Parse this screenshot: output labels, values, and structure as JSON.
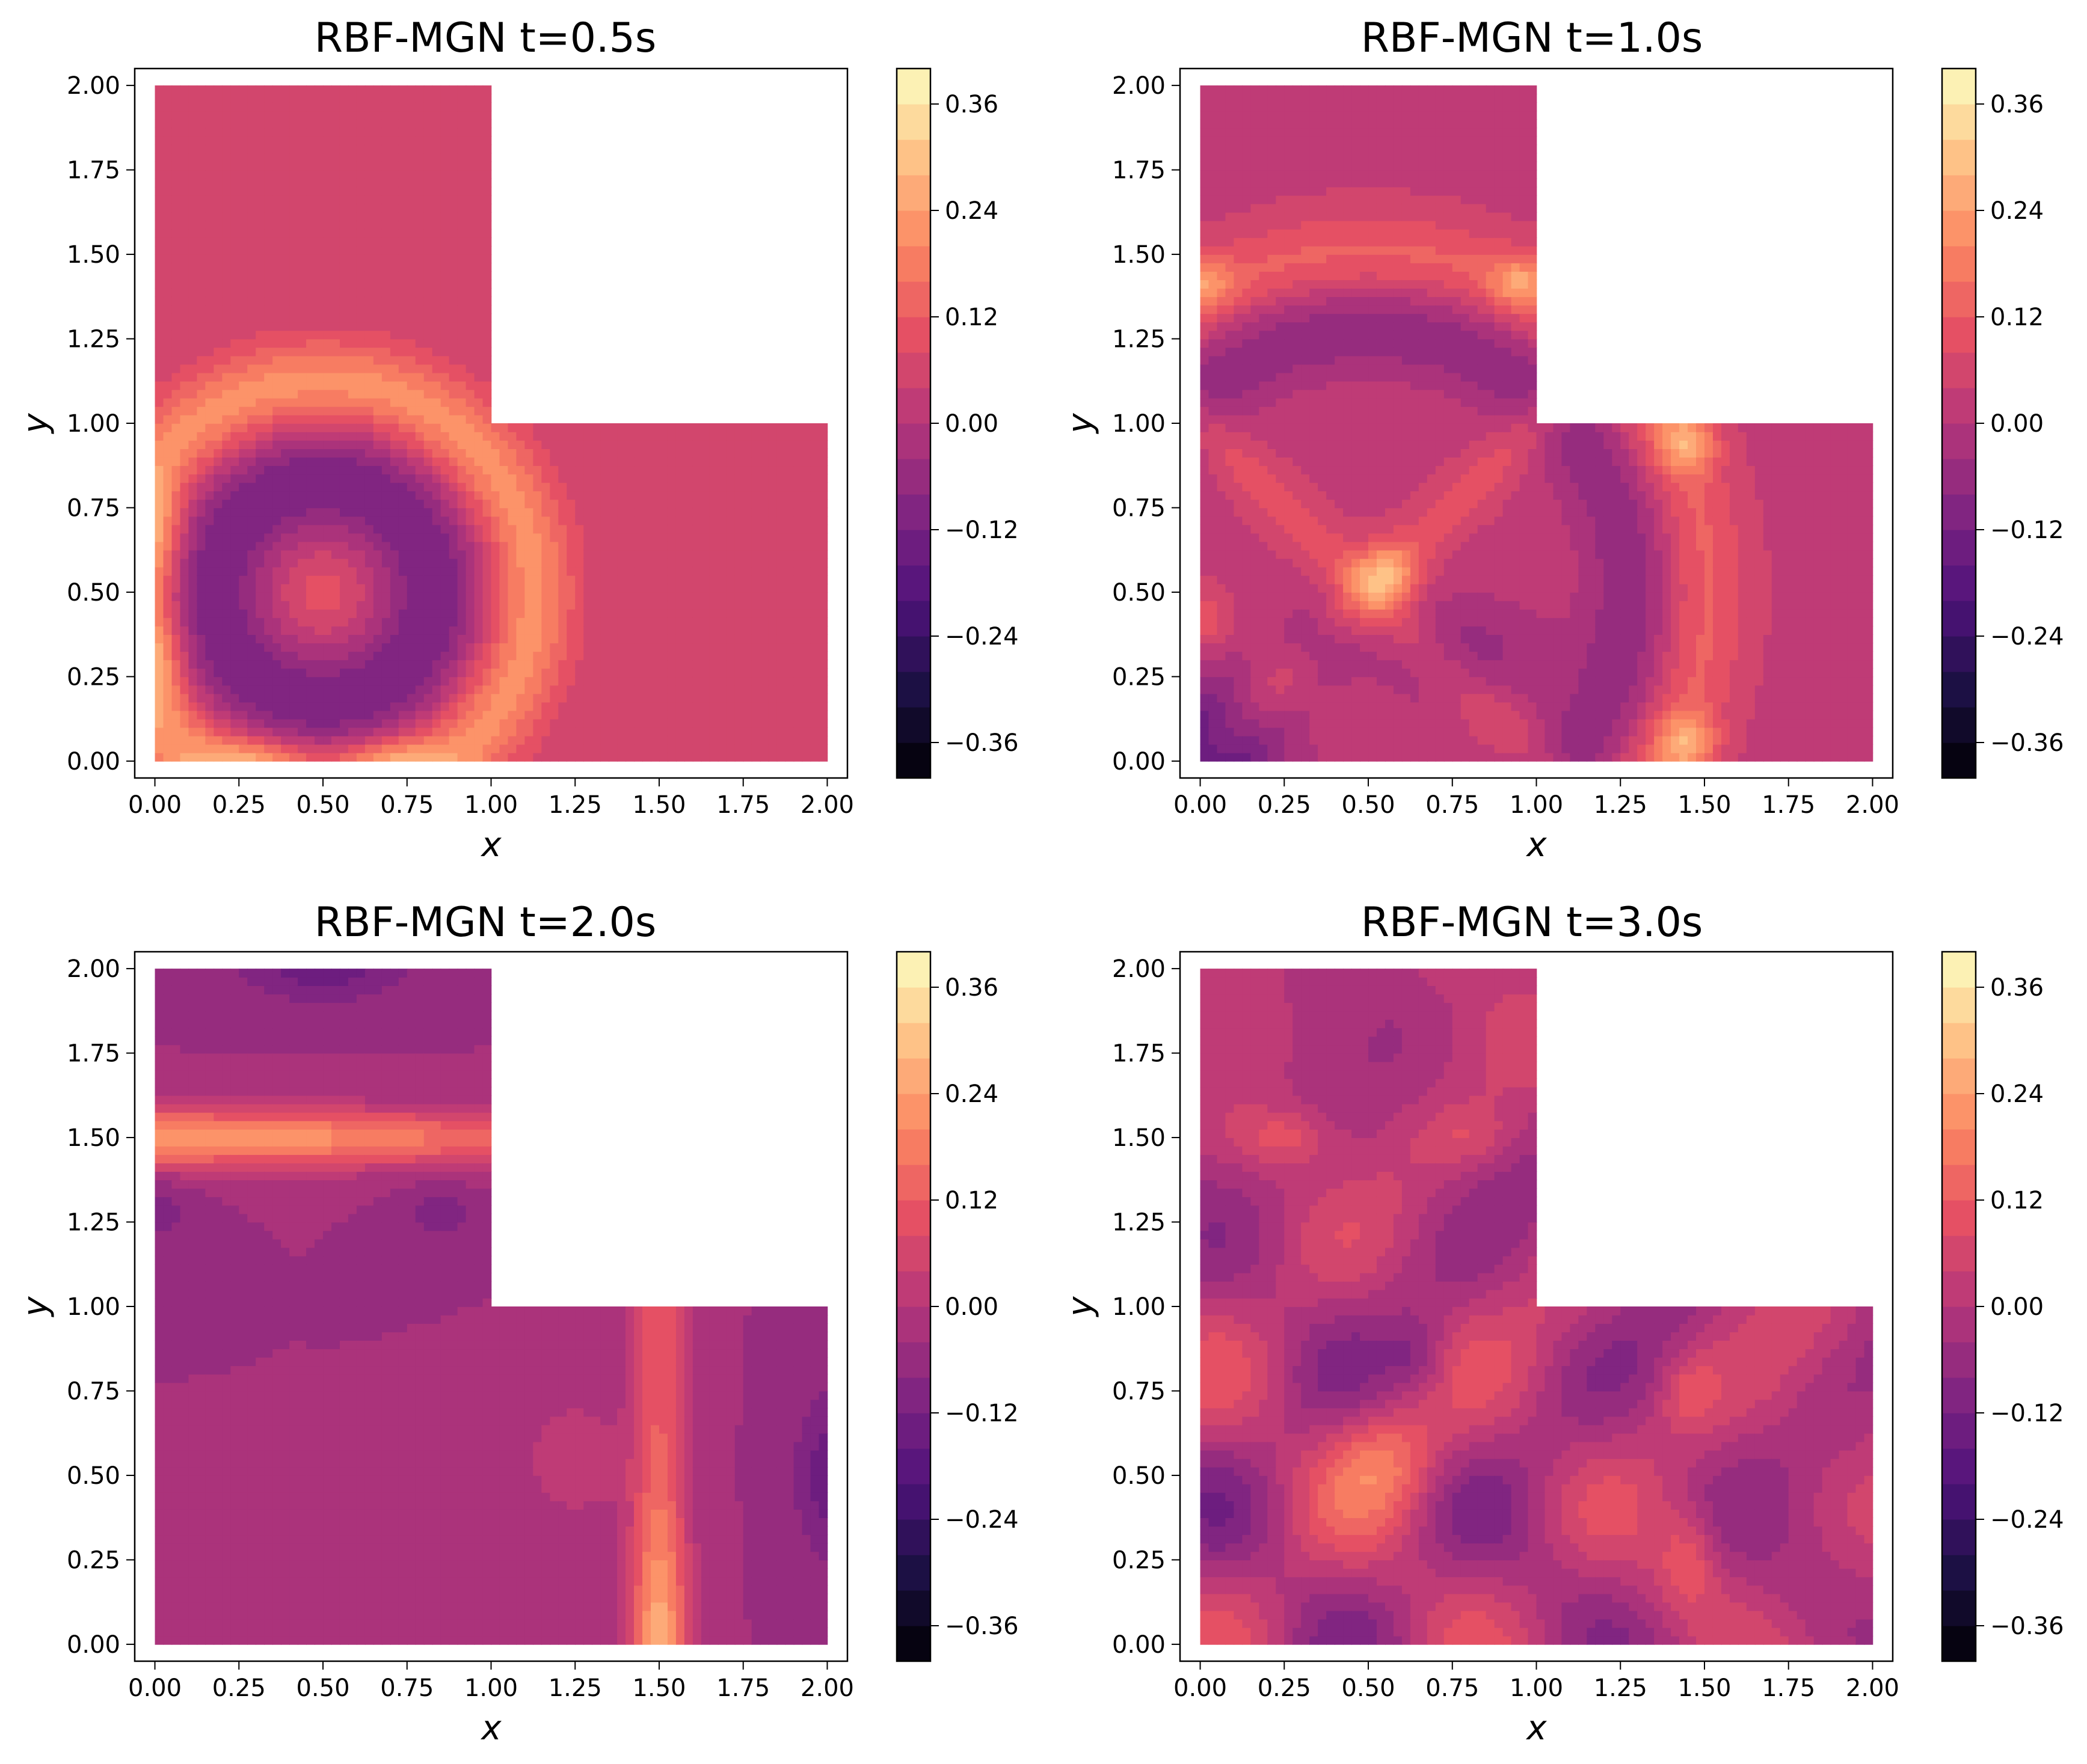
{
  "figure": {
    "colormap": "magma",
    "colorbar": {
      "ticks": [
        "-0.36",
        "-0.24",
        "-0.12",
        "0.00",
        "0.12",
        "0.24",
        "0.36"
      ],
      "tick_values": [
        -0.36,
        -0.24,
        -0.12,
        0.0,
        0.12,
        0.24,
        0.36
      ],
      "vmin": -0.4,
      "vmax": 0.4,
      "levels": 20
    }
  },
  "chart_data": [
    {
      "type": "heatmap",
      "title": "RBF-MGN t=0.5s",
      "xlabel": "x",
      "ylabel": "y",
      "xlim": [
        -0.06,
        2.06
      ],
      "ylim": [
        -0.05,
        2.05
      ],
      "xticks": [
        "0.00",
        "0.25",
        "0.50",
        "0.75",
        "1.00",
        "1.25",
        "1.50",
        "1.75",
        "2.00"
      ],
      "yticks": [
        "0.00",
        "0.25",
        "0.50",
        "0.75",
        "1.00",
        "1.25",
        "1.50",
        "1.75",
        "2.00"
      ],
      "domain": "L-shaped region: [0,2]x[0,1] union [0,1]x[1,2]",
      "field_summary": "circular wave centered near (0.5,0.5): outer ring ~0.20 at radius ~0.62, inner ring ~-0.10 at radius ~0.33, bright spots ~0.32 near left and bottom walls, background ~0.05"
    },
    {
      "type": "heatmap",
      "title": "RBF-MGN t=1.0s",
      "xlabel": "x",
      "ylabel": "y",
      "xlim": [
        -0.06,
        2.06
      ],
      "ylim": [
        -0.05,
        2.05
      ],
      "xticks": [
        "0.00",
        "0.25",
        "0.50",
        "0.75",
        "1.00",
        "1.25",
        "1.50",
        "1.75",
        "2.00"
      ],
      "yticks": [
        "0.00",
        "0.25",
        "0.50",
        "0.75",
        "1.00",
        "1.25",
        "1.50",
        "1.75",
        "2.00"
      ],
      "domain": "L-shaped region: [0,2]x[0,1] union [0,1]x[1,2]",
      "field_summary": "expanded ring at radius ~1.0 (~0.16), reflected diagonal ridges, peaks ~0.30 at (0.55,0.55), (1.45,0.95), (1.45,0.05), (0.0,1.42), (0.95,1.42); troughs ~-0.18 near origin"
    },
    {
      "type": "heatmap",
      "title": "RBF-MGN t=2.0s",
      "xlabel": "x",
      "ylabel": "y",
      "xlim": [
        -0.06,
        2.06
      ],
      "ylim": [
        -0.05,
        2.05
      ],
      "xticks": [
        "0.00",
        "0.25",
        "0.50",
        "0.75",
        "1.00",
        "1.25",
        "1.50",
        "1.75",
        "2.00"
      ],
      "yticks": [
        "0.00",
        "0.25",
        "0.50",
        "0.75",
        "1.00",
        "1.25",
        "1.50",
        "1.75",
        "2.00"
      ],
      "domain": "L-shaped region: [0,2]x[0,1] union [0,1]x[1,2]",
      "field_summary": "horizontal band near y=1.5 (~0.26), vertical column near x=1.5 (~0.30 peaking at bottom), lower-left region ~-0.04, troughs ~-0.12 near (0.5,2.0) and (2.0,0.5)"
    },
    {
      "type": "heatmap",
      "title": "RBF-MGN t=3.0s",
      "xlabel": "x",
      "ylabel": "y",
      "xlim": [
        -0.06,
        2.06
      ],
      "ylim": [
        -0.05,
        2.05
      ],
      "xticks": [
        "0.00",
        "0.25",
        "0.50",
        "0.75",
        "1.00",
        "1.25",
        "1.50",
        "1.75",
        "2.00"
      ],
      "yticks": [
        "0.00",
        "0.25",
        "0.50",
        "0.75",
        "1.00",
        "1.25",
        "1.50",
        "1.75",
        "2.00"
      ],
      "domain": "L-shaped region: [0,2]x[0,1] union [0,1]x[1,2]",
      "field_summary": "diffuse interference pattern, values mostly -0.08 to 0.20, blobs ~0.20 near (0.55,0.55), (0.25,1.5), (1.45,0.25), troughs ~-0.08 near (0.65,0.85)"
    }
  ]
}
